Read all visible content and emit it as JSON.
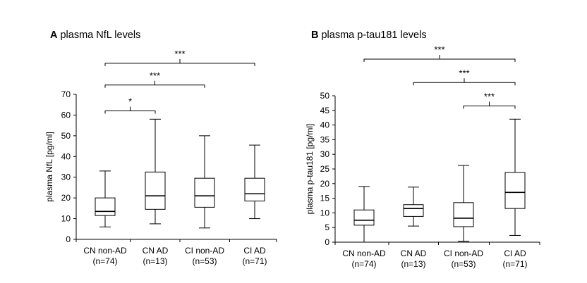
{
  "chart_data": [
    {
      "type": "boxplot",
      "panel": "A",
      "title": "plasma NfL levels",
      "ylabel": "plasma NfL [pg/ml]",
      "ylim": [
        0,
        70
      ],
      "yticks": [
        0,
        10,
        20,
        30,
        40,
        50,
        60,
        70
      ],
      "categories": [
        "CN non-AD",
        "CN AD",
        "CI non-AD",
        "CI AD"
      ],
      "counts": [
        "(n=74)",
        "(n=13)",
        "(n=53)",
        "(n=71)"
      ],
      "boxes": [
        {
          "min": 6,
          "q1": 11.5,
          "median": 13.5,
          "q3": 20,
          "max": 33
        },
        {
          "min": 7.5,
          "q1": 14.5,
          "median": 21,
          "q3": 32.5,
          "max": 58
        },
        {
          "min": 5.5,
          "q1": 15.5,
          "median": 21,
          "q3": 29.5,
          "max": 50
        },
        {
          "min": 10,
          "q1": 18.5,
          "median": 22,
          "q3": 29.5,
          "max": 45.5
        }
      ],
      "significance": [
        {
          "from": 0,
          "to": 1,
          "label": "*",
          "level": 62
        },
        {
          "from": 0,
          "to": 2,
          "label": "***",
          "level": 74.5
        },
        {
          "from": 0,
          "to": 3,
          "label": "***",
          "level": 85
        }
      ]
    },
    {
      "type": "boxplot",
      "panel": "B",
      "title": "plasma p-tau181 levels",
      "ylabel": "plasma p-tau181 [pg/ml]",
      "ylim": [
        0,
        50
      ],
      "yticks": [
        0,
        5,
        10,
        15,
        20,
        25,
        30,
        35,
        40,
        45,
        50
      ],
      "categories": [
        "CN non-AD",
        "CN AD",
        "CI non-AD",
        "CI AD"
      ],
      "counts": [
        "(n=74)",
        "(n=13)",
        "(n=53)",
        "(n=71)"
      ],
      "boxes": [
        {
          "min": 0,
          "q1": 5.8,
          "median": 7.5,
          "q3": 11,
          "max": 19
        },
        {
          "min": 5.5,
          "q1": 8.8,
          "median": 11.5,
          "q3": 12.8,
          "max": 18.8
        },
        {
          "min": 0.3,
          "q1": 5.3,
          "median": 8.2,
          "q3": 13.5,
          "max": 26.2
        },
        {
          "min": 2.3,
          "q1": 11.5,
          "median": 17,
          "q3": 23.8,
          "max": 42
        }
      ],
      "significance": [
        {
          "from": 2,
          "to": 3,
          "label": "***",
          "level": 46.5
        },
        {
          "from": 1,
          "to": 3,
          "label": "***",
          "level": 54.5
        },
        {
          "from": 0,
          "to": 3,
          "label": "***",
          "level": 62.5
        }
      ]
    }
  ],
  "panels": {
    "A": {
      "letter": "A",
      "title": "plasma NfL levels"
    },
    "B": {
      "letter": "B",
      "title": "plasma p-tau181 levels"
    }
  }
}
